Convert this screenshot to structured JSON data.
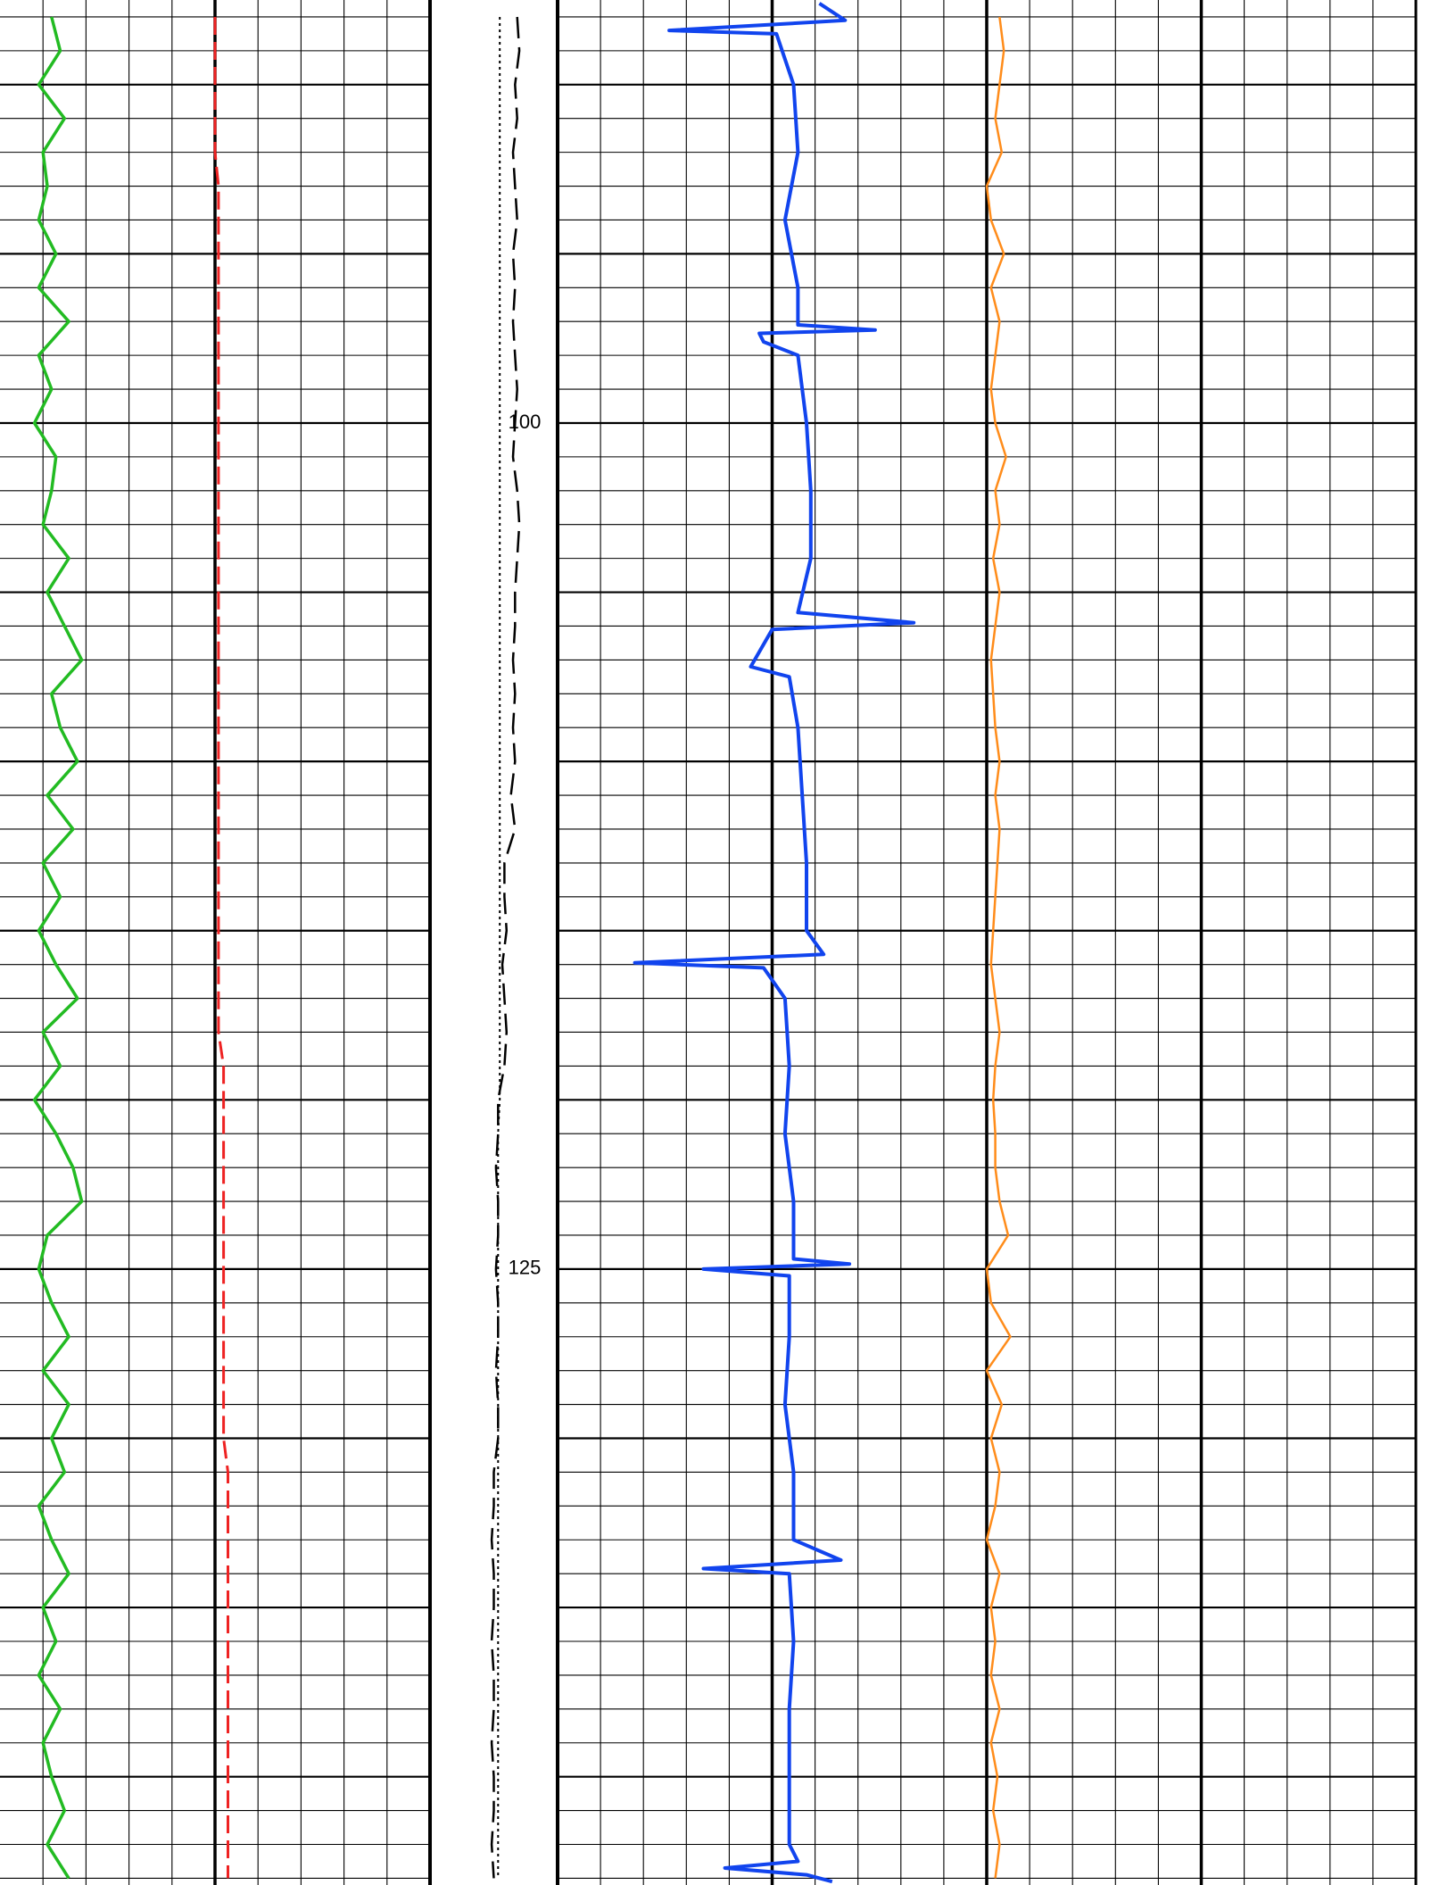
{
  "chart_data": {
    "type": "well-log",
    "ylim": [
      87.5,
      143.2
    ],
    "yticks": [
      100,
      125
    ],
    "grid": {
      "minor": 1,
      "major": 5
    },
    "tracks": [
      {
        "xlim": [
          0,
          10
        ],
        "grid": true,
        "bold": [
          5
        ]
      },
      {
        "xlim": [
          0,
          3
        ],
        "grid": false,
        "bold": []
      },
      {
        "xlim": [
          0,
          20
        ],
        "grid": true,
        "bold": [
          5,
          10,
          15
        ]
      }
    ],
    "x": [
      88,
      89,
      90,
      91,
      92,
      93,
      94,
      95,
      96,
      97,
      98,
      99,
      100,
      101,
      102,
      103,
      104,
      105,
      106,
      107,
      108,
      109,
      110,
      111,
      112,
      113,
      114,
      115,
      116,
      117,
      118,
      119,
      120,
      121,
      122,
      123,
      124,
      125,
      126,
      127,
      128,
      129,
      130,
      131,
      132,
      133,
      134,
      135,
      136,
      137,
      138,
      139,
      140,
      141,
      142,
      143
    ],
    "series": [
      {
        "track": 0,
        "color": "#22bb22",
        "dash": "solid",
        "width": 3.5,
        "values": [
          1.2,
          1.4,
          0.9,
          1.5,
          1.0,
          1.1,
          0.9,
          1.3,
          0.9,
          1.6,
          0.9,
          1.2,
          0.8,
          1.3,
          1.2,
          1.0,
          1.6,
          1.1,
          1.5,
          1.9,
          1.2,
          1.4,
          1.8,
          1.1,
          1.7,
          1.0,
          1.4,
          0.9,
          1.3,
          1.8,
          1.0,
          1.4,
          0.8,
          1.3,
          1.7,
          1.9,
          1.1,
          0.9,
          1.2,
          1.6,
          1.0,
          1.6,
          1.2,
          1.5,
          0.9,
          1.2,
          1.6,
          1.0,
          1.3,
          0.9,
          1.4,
          1.0,
          1.2,
          1.5,
          1.1,
          1.6
        ]
      },
      {
        "track": 0,
        "color": "#ee2222",
        "dash": "dashed",
        "width": 3,
        "values": [
          5.0,
          5.0,
          5.0,
          5.0,
          5.0,
          5.08,
          5.08,
          5.08,
          5.08,
          5.08,
          5.08,
          5.08,
          5.08,
          5.08,
          5.08,
          5.08,
          5.08,
          5.08,
          5.08,
          5.08,
          5.08,
          5.08,
          5.08,
          5.08,
          5.08,
          5.08,
          5.08,
          5.08,
          5.08,
          5.08,
          5.08,
          5.2,
          5.2,
          5.2,
          5.2,
          5.2,
          5.2,
          5.2,
          5.2,
          5.2,
          5.2,
          5.2,
          5.2,
          5.3,
          5.3,
          5.3,
          5.3,
          5.3,
          5.3,
          5.3,
          5.3,
          5.3,
          5.3,
          5.3,
          5.3,
          5.3
        ]
      },
      {
        "track": 1,
        "color": "#000000",
        "dash": "long-dash",
        "width": 2.5,
        "values": [
          2.05,
          2.1,
          2.0,
          2.05,
          1.95,
          2.0,
          2.05,
          1.95,
          2.0,
          1.95,
          2.0,
          2.05,
          2.0,
          1.95,
          2.05,
          2.1,
          2.05,
          2.0,
          2.0,
          1.95,
          2.0,
          1.95,
          2.0,
          1.9,
          2.0,
          1.75,
          1.75,
          1.8,
          1.7,
          1.75,
          1.8,
          1.75,
          1.6,
          1.6,
          1.55,
          1.6,
          1.6,
          1.55,
          1.6,
          1.6,
          1.55,
          1.6,
          1.6,
          1.5,
          1.5,
          1.45,
          1.5,
          1.5,
          1.45,
          1.5,
          1.5,
          1.45,
          1.5,
          1.5,
          1.45,
          1.5
        ]
      },
      {
        "track": 1,
        "color": "#000000",
        "dash": "dotted",
        "width": 2,
        "values": [
          1.64,
          1.64,
          1.64,
          1.64,
          1.64,
          1.64,
          1.64,
          1.64,
          1.64,
          1.64,
          1.64,
          1.64,
          1.64,
          1.64,
          1.64,
          1.64,
          1.64,
          1.64,
          1.64,
          1.64,
          1.64,
          1.64,
          1.64,
          1.64,
          1.64,
          1.64,
          1.64,
          1.64,
          1.64,
          1.64,
          1.64,
          1.64,
          1.64,
          1.6,
          1.6,
          1.6,
          1.6,
          1.6,
          1.6,
          1.6,
          1.6,
          1.6,
          1.6,
          1.6,
          1.6,
          1.6,
          1.6,
          1.6,
          1.6,
          1.6,
          1.6,
          1.6,
          1.6,
          1.6,
          1.6,
          1.6
        ]
      },
      {
        "track": 2,
        "color": "#1144ee",
        "dash": "solid",
        "width": 4,
        "x": [
          87.6,
          88.1,
          88.4,
          88.5,
          90,
          92,
          94,
          96,
          97.1,
          97.25,
          97.35,
          97.6,
          98,
          100,
          102,
          104,
          105.6,
          105.9,
          106.1,
          107.2,
          107.5,
          109,
          111,
          113,
          115,
          115.7,
          115.95,
          116.1,
          117,
          119,
          121,
          123,
          124.7,
          124.85,
          125.0,
          125.2,
          127,
          129,
          131,
          133,
          133.6,
          133.85,
          134.0,
          136,
          138,
          140,
          142,
          142.5,
          142.7,
          142.9,
          143.1
        ],
        "values": [
          6.1,
          6.7,
          2.6,
          5.1,
          5.5,
          5.6,
          5.3,
          5.6,
          5.6,
          7.4,
          4.7,
          4.8,
          5.6,
          5.8,
          5.9,
          5.9,
          5.6,
          8.3,
          5.0,
          4.5,
          5.4,
          5.6,
          5.7,
          5.8,
          5.8,
          6.2,
          1.8,
          4.8,
          5.3,
          5.4,
          5.3,
          5.5,
          5.5,
          6.8,
          3.4,
          5.4,
          5.4,
          5.3,
          5.5,
          5.5,
          6.6,
          3.4,
          5.4,
          5.5,
          5.4,
          5.4,
          5.4,
          5.6,
          3.9,
          5.8,
          6.4
        ]
      },
      {
        "track": 2,
        "color": "#ff8c1a",
        "dash": "solid",
        "width": 2.5,
        "values": [
          10.3,
          10.4,
          10.3,
          10.2,
          10.35,
          10.0,
          10.1,
          10.4,
          10.1,
          10.3,
          10.2,
          10.1,
          10.2,
          10.45,
          10.2,
          10.3,
          10.15,
          10.3,
          10.2,
          10.1,
          10.15,
          10.2,
          10.3,
          10.2,
          10.3,
          10.25,
          10.2,
          10.15,
          10.1,
          10.2,
          10.3,
          10.2,
          10.15,
          10.2,
          10.2,
          10.3,
          10.5,
          10.0,
          10.1,
          10.55,
          10.0,
          10.35,
          10.1,
          10.3,
          10.2,
          10.0,
          10.3,
          10.1,
          10.2,
          10.1,
          10.3,
          10.1,
          10.25,
          10.15,
          10.3,
          10.2
        ]
      }
    ]
  }
}
